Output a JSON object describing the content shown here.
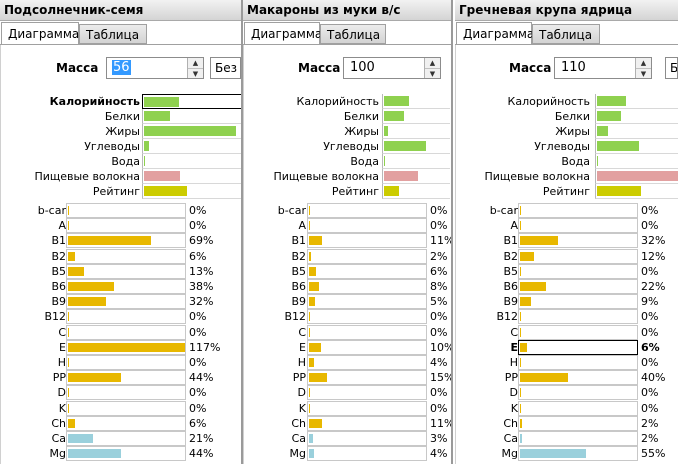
{
  "tabs": {
    "diagram": "Диаграмма",
    "table": "Таблица"
  },
  "mass_label": "Масса",
  "nutrient_labels": [
    "Калорийность",
    "Белки",
    "Жиры",
    "Углеводы",
    "Вода",
    "Пищевые волокна",
    "Рейтинг"
  ],
  "vitamin_labels": [
    "b-car",
    "A",
    "B1",
    "B2",
    "B5",
    "B6",
    "B9",
    "B12",
    "C",
    "E",
    "H",
    "PP",
    "D",
    "K",
    "Ch",
    "Ca",
    "Mg"
  ],
  "colors": {
    "green": "#8fd14f",
    "pink": "#e2a0a0",
    "yellow_green": "#cccc00",
    "vitamin": "#e8b800",
    "mineral": "#9ad0dc",
    "selection": "#3399ff"
  },
  "panels": [
    {
      "title": "Подсолнечник-семя",
      "mass_value": "56",
      "mass_selected": true,
      "unit_text": "Без с",
      "bold_nutrient_index": 0,
      "nutrient_fill": [
        0.36,
        0.27,
        0.94,
        0.05,
        0.01,
        0.37,
        0.44
      ],
      "vitamin_values": [
        0,
        0,
        69,
        6,
        13,
        38,
        32,
        0,
        0,
        117,
        0,
        44,
        0,
        0,
        6,
        21,
        44
      ],
      "vitamin_pct": [
        "0%",
        "0%",
        "69%",
        "6%",
        "13%",
        "38%",
        "32%",
        "0%",
        "0%",
        "117%",
        "0%",
        "44%",
        "0%",
        "0%",
        "6%",
        "21%",
        "44%"
      ],
      "bold_vitamin_index": -1
    },
    {
      "title": "Макароны из муки в/с",
      "mass_value": "100",
      "mass_selected": false,
      "unit_text": "",
      "bold_nutrient_index": -1,
      "nutrient_fill": [
        0.38,
        0.31,
        0.06,
        0.63,
        0.01,
        0.52,
        0.23
      ],
      "vitamin_values": [
        0,
        0,
        11,
        2,
        6,
        8,
        5,
        0,
        0,
        10,
        4,
        15,
        0,
        0,
        11,
        3,
        4
      ],
      "vitamin_pct": [
        "0%",
        "0%",
        "11%",
        "2%",
        "6%",
        "8%",
        "5%",
        "0%",
        "0%",
        "10%",
        "4%",
        "15%",
        "0%",
        "0%",
        "11%",
        "3%",
        "4%"
      ],
      "bold_vitamin_index": -1
    },
    {
      "title": "Гречневая крупа ядрица",
      "mass_value": "110",
      "mass_selected": false,
      "unit_text": "Б",
      "bold_nutrient_index": -1,
      "nutrient_fill": [
        0.36,
        0.3,
        0.13,
        0.52,
        0.01,
        1.0,
        0.54
      ],
      "vitamin_values": [
        0,
        0,
        32,
        12,
        0,
        22,
        9,
        0,
        0,
        6,
        0,
        40,
        0,
        0,
        2,
        2,
        55
      ],
      "vitamin_pct": [
        "0%",
        "0%",
        "32%",
        "12%",
        "0%",
        "22%",
        "9%",
        "0%",
        "0%",
        "6%",
        "0%",
        "40%",
        "0%",
        "0%",
        "2%",
        "2%",
        "55%"
      ],
      "bold_vitamin_index": 9
    }
  ]
}
